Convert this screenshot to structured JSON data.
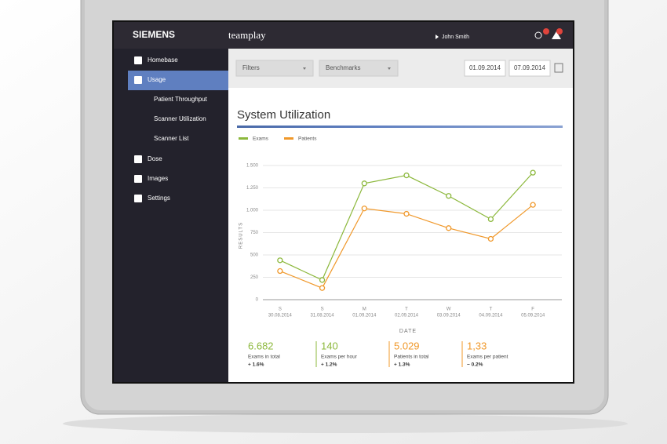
{
  "header": {
    "brand": "SIEMENS",
    "app": "teamplay",
    "user": "John Smith"
  },
  "sidebar": {
    "items": [
      "Homebase",
      "Usage",
      "Patient Throughput",
      "Scanner Utilization",
      "Scanner List",
      "Dose",
      "Images",
      "Settings"
    ]
  },
  "toolbar": {
    "filters": "Filters",
    "benchmarks": "Benchmarks",
    "date_from": "01.09.2014",
    "date_to": "07.09.2014"
  },
  "chart_data": {
    "type": "line",
    "title": "System Utilization",
    "x_label": "DATE",
    "y_label": "RESULTS",
    "weekdays": [
      "S",
      "S",
      "M",
      "T",
      "W",
      "T",
      "F"
    ],
    "categories": [
      "30.08.2014",
      "31.08.2014",
      "01.09.2014",
      "02.09.2014",
      "03.09.2014",
      "04.09.2014",
      "05.09.2014"
    ],
    "series": [
      {
        "name": "Exams",
        "color": "#8cb83c",
        "values": [
          440,
          220,
          1300,
          1390,
          1160,
          900,
          1420
        ]
      },
      {
        "name": "Patients",
        "color": "#f0982a",
        "values": [
          320,
          130,
          1020,
          960,
          800,
          680,
          1060
        ]
      }
    ],
    "ylim": [
      0,
      1500
    ],
    "yticks": [
      0,
      250,
      500,
      750,
      {
        "value": 1000,
        "label": "1.000"
      },
      {
        "value": 1250,
        "label": "1.250"
      },
      {
        "value": 1500,
        "label": "1.500"
      }
    ],
    "grid": true
  },
  "stats": [
    {
      "value": "6.682",
      "label": "Exams in total",
      "change": "+ 1.6%"
    },
    {
      "value": "140",
      "label": "Exams per hour",
      "change": "+ 1.2%"
    },
    {
      "value": "5.029",
      "label": "Patients in total",
      "change": "+ 1.3%"
    },
    {
      "value": "1,33",
      "label": "Exams per patient",
      "change": "− 0.2%"
    }
  ]
}
